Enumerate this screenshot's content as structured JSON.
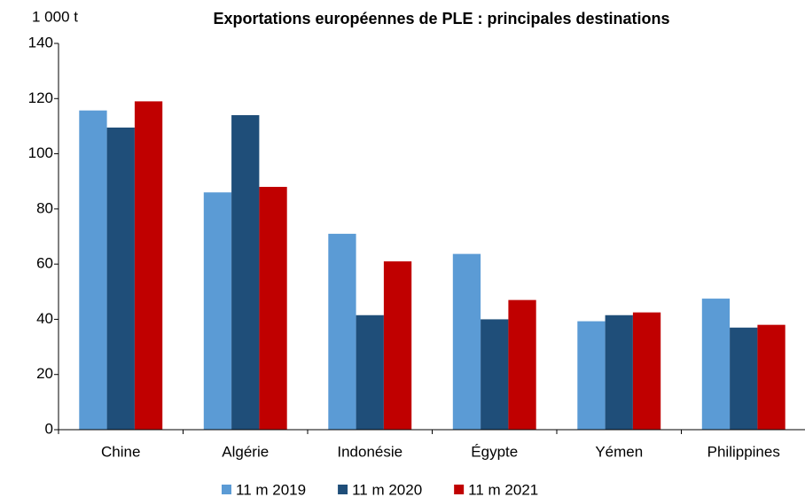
{
  "chart_data": {
    "type": "bar",
    "title": "Exportations européennes de PLE : principales destinations",
    "y_label": "1 000 t",
    "categories": [
      "Chine",
      "Algérie",
      "Indonésie",
      "Égypte",
      "Yémen",
      "Philippines"
    ],
    "series": [
      {
        "name": "11 m 2019",
        "color": "#5b9bd5",
        "values": [
          115.7,
          86,
          71,
          63.7,
          39.3,
          47.5
        ]
      },
      {
        "name": "11 m 2020",
        "color": "#1f4e79",
        "values": [
          109.5,
          114,
          41.5,
          40,
          41.5,
          37
        ]
      },
      {
        "name": "11 m 2021",
        "color": "#c00000",
        "values": [
          119,
          88,
          61,
          47,
          42.5,
          38
        ]
      }
    ],
    "ylim": [
      0,
      140
    ],
    "yticks": [
      0,
      20,
      40,
      60,
      80,
      100,
      120,
      140
    ],
    "grid": false
  }
}
